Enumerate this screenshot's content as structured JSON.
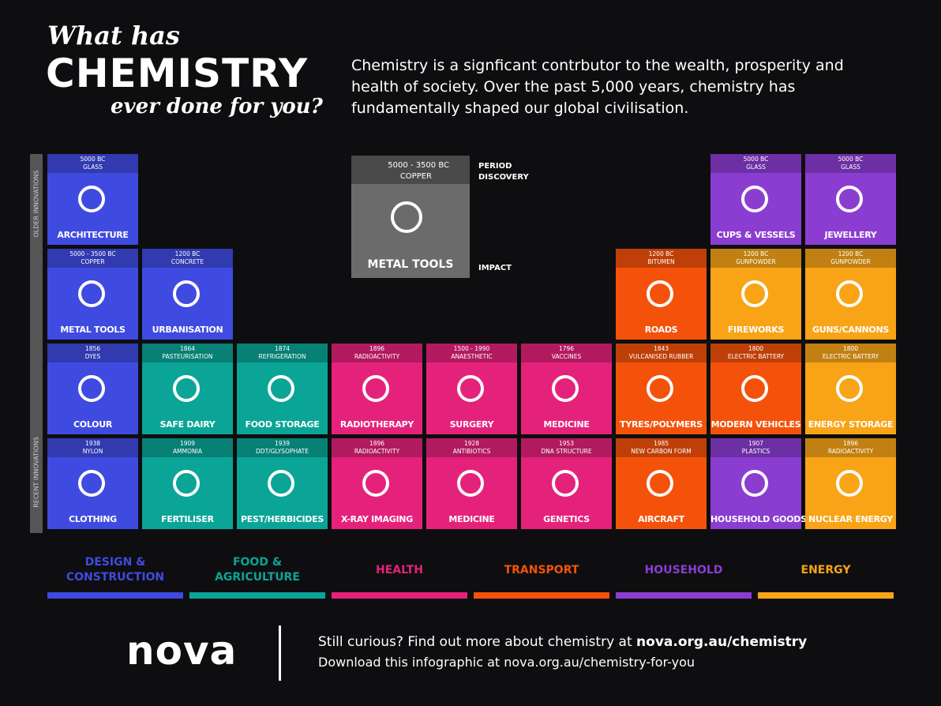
{
  "header": {
    "title_line1": "What has",
    "title_line2": "CHEMISTRY",
    "title_line3": "ever done for you?",
    "intro": "Chemistry is a signficant contrbutor to the wealth, prosperity and health of society. Over the past 5,000 years, chemistry has fundamentally shaped our global civilisation."
  },
  "axis": {
    "top": "OLDER INNOVATIONS",
    "bottom": "RECENT INNOVATIONS"
  },
  "key": {
    "period": "5000 - 3500 BC",
    "discovery": "COPPER",
    "impact": "METAL TOOLS",
    "period_label": "PERIOD",
    "discovery_label": "DISCOVERY",
    "impact_label": "IMPACT"
  },
  "categories": [
    {
      "label": "DESIGN & CONSTRUCTION",
      "color": "#3f4be0",
      "tiles": [
        {
          "period": "5000 BC",
          "discovery": "GLASS",
          "impact": "ARCHITECTURE"
        },
        {
          "period": "5000 - 3500 BC",
          "discovery": "COPPER",
          "impact": "METAL TOOLS"
        },
        {
          "period": "1200 BC",
          "discovery": "CONCRETE",
          "impact": "URBANISATION"
        },
        {
          "period": "1856",
          "discovery": "DYES",
          "impact": "COLOUR"
        },
        {
          "period": "1938",
          "discovery": "NYLON",
          "impact": "CLOTHING"
        }
      ]
    },
    {
      "label": "FOOD & AGRICULTURE",
      "color": "#0aa597",
      "tiles": [
        {
          "period": "1864",
          "discovery": "PASTEURISATION",
          "impact": "SAFE DAIRY"
        },
        {
          "period": "1874",
          "discovery": "REFRIGERATION",
          "impact": "FOOD STORAGE"
        },
        {
          "period": "1909",
          "discovery": "AMMONIA",
          "impact": "FERTILISER"
        },
        {
          "period": "1939",
          "discovery": "DDT/GLYSOPHATE",
          "impact": "PEST/HERBICIDES"
        }
      ]
    },
    {
      "label": "HEALTH",
      "color": "#e5227b",
      "tiles": [
        {
          "period": "1896",
          "discovery": "RADIOACTIVITY",
          "impact": "RADIOTHERAPY"
        },
        {
          "period": "1500 - 1990",
          "discovery": "ANAESTHETIC",
          "impact": "SURGERY"
        },
        {
          "period": "1796",
          "discovery": "VACCINES",
          "impact": "MEDICINE"
        },
        {
          "period": "1896",
          "discovery": "RADIOACTIVITY",
          "impact": "X-RAY IMAGING"
        },
        {
          "period": "1928",
          "discovery": "ANTIBIOTICS",
          "impact": "MEDICINE"
        },
        {
          "period": "1953",
          "discovery": "DNA STRUCTURE",
          "impact": "GENETICS"
        }
      ]
    },
    {
      "label": "TRANSPORT",
      "color": "#f4520b",
      "tiles": [
        {
          "period": "1200 BC",
          "discovery": "BITUMEN",
          "impact": "ROADS"
        },
        {
          "period": "1843",
          "discovery": "VULCANISED RUBBER",
          "impact": "TYRES/POLYMERS"
        },
        {
          "period": "1800",
          "discovery": "ELECTRIC BATTERY",
          "impact": "MODERN VEHICLES"
        },
        {
          "period": "1985",
          "discovery": "NEW CARBON FORM",
          "impact": "AIRCRAFT"
        }
      ]
    },
    {
      "label": "HOUSEHOLD",
      "color": "#8b3dd2",
      "tiles": [
        {
          "period": "5000 BC",
          "discovery": "GLASS",
          "impact": "CUPS & VESSELS"
        },
        {
          "period": "5000 BC",
          "discovery": "GLASS",
          "impact": "JEWELLERY"
        },
        {
          "period": "1907",
          "discovery": "PLASTICS",
          "impact": "HOUSEHOLD GOODS"
        }
      ]
    },
    {
      "label": "ENERGY",
      "color": "#f8a416",
      "tiles": [
        {
          "period": "1200 BC",
          "discovery": "GUNPOWDER",
          "impact": "FIREWORKS"
        },
        {
          "period": "1200 BC",
          "discovery": "GUNPOWDER",
          "impact": "GUNS/CANNONS"
        },
        {
          "period": "1800",
          "discovery": "ELECTRIC BATTERY",
          "impact": "ENERGY STORAGE"
        },
        {
          "period": "1896",
          "discovery": "RADIOACTIVITY",
          "impact": "NUCLEAR ENERGY"
        }
      ]
    }
  ],
  "footer": {
    "logo": "nova",
    "line1": "Still curious? Find out more about chemistry at",
    "link1": "nova.org.au/chemistry",
    "line2": "Download this infographic at nova.org.au/chemistry-for-you"
  }
}
